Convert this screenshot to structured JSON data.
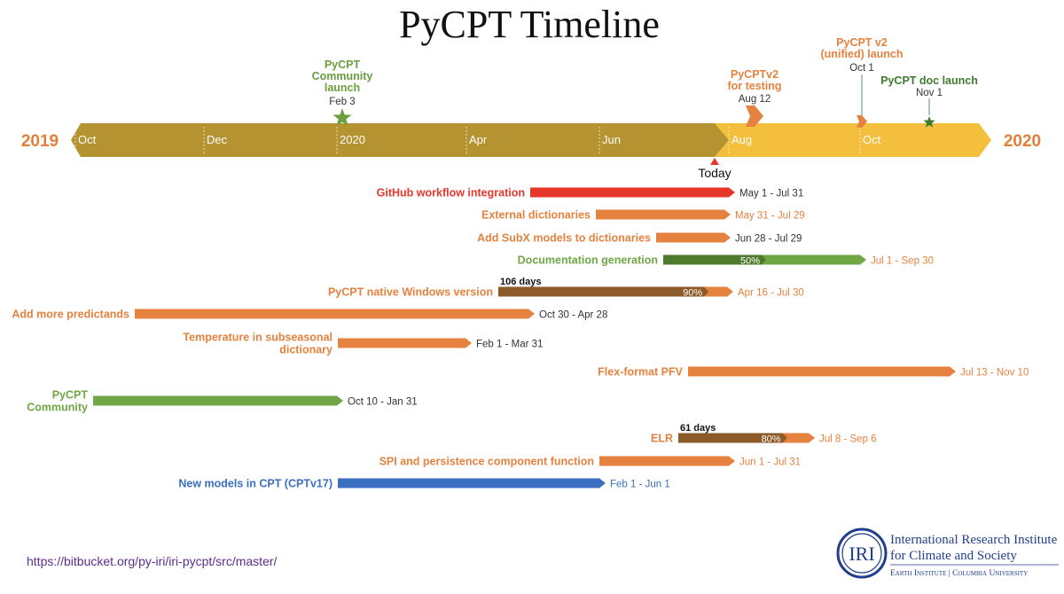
{
  "title": "PyCPT Timeline",
  "colors": {
    "axis_main": "#b59330",
    "axis_future": "#f3bf3c",
    "year": "#e27f3a",
    "red": "#e5372a",
    "orange": "#e5823f",
    "green": "#70a645",
    "dark_green": "#4d7a2c",
    "brown": "#8d5a29",
    "blue": "#3a6fc2",
    "date_text": "#333333",
    "milestone_green": "#6a9e3f",
    "milestone_dark_green": "#3f7a2f",
    "today": "#e5372a",
    "logo_blue": "#1f3f8c"
  },
  "timeline": {
    "start_year": "2019",
    "end_year": "2020",
    "months": [
      "Oct",
      "Dec",
      "2020",
      "Apr",
      "Jun",
      "Aug",
      "Oct"
    ],
    "today_label": "Today"
  },
  "milestones": [
    {
      "label_lines": [
        "PyCPT",
        "Community",
        "launch"
      ],
      "date": "Feb 3",
      "shape": "star",
      "color": "#6a9e3f"
    },
    {
      "label_lines": [
        "PyCPTv2",
        "for testing"
      ],
      "date": "Aug 12",
      "shape": "chevron",
      "color": "#e5823f"
    },
    {
      "label_lines": [
        "PyCPT v2",
        "(unified) launch"
      ],
      "date": "Oct 1",
      "shape": "chevron",
      "color": "#e5823f"
    },
    {
      "label_lines": [
        "PyCPT doc launch"
      ],
      "date": "Nov 1",
      "shape": "star",
      "color": "#3f7a2f"
    }
  ],
  "tasks": [
    {
      "label_lines": [
        "GitHub workflow integration"
      ],
      "dates": "May 1 - Jul 31",
      "color": "#e5372a",
      "date_color": "#333333"
    },
    {
      "label_lines": [
        "External dictionaries"
      ],
      "dates": "May 31 - Jul 29",
      "color": "#e5823f",
      "date_color": "#e5823f"
    },
    {
      "label_lines": [
        "Add SubX models to dictionaries"
      ],
      "dates": "Jun 28 - Jul 29",
      "color": "#e5823f",
      "date_color": "#333333"
    },
    {
      "label_lines": [
        "Documentation generation"
      ],
      "dates": "Jul 1 - Sep 30",
      "color": "#70a645",
      "date_color": "#e5823f",
      "progress": 0.5,
      "progress_label": "50%",
      "progress_color": "#4d7a2c"
    },
    {
      "label_lines": [
        "PyCPT native Windows version"
      ],
      "dates": "Apr 16 - Jul 30",
      "color": "#e5823f",
      "date_color": "#e5823f",
      "progress": 0.9,
      "progress_label": "90%",
      "progress_color": "#8d5a29",
      "duration_note": "106 days"
    },
    {
      "label_lines": [
        "Add more predictands"
      ],
      "dates": "Oct 30 - Apr 28",
      "color": "#e5823f",
      "date_color": "#333333"
    },
    {
      "label_lines": [
        "Temperature in subseasonal",
        "dictionary"
      ],
      "dates": "Feb 1 - Mar 31",
      "color": "#e5823f",
      "date_color": "#333333"
    },
    {
      "label_lines": [
        "Flex-format PFV"
      ],
      "dates": "Jul 13 - Nov 10",
      "color": "#e5823f",
      "date_color": "#e5823f"
    },
    {
      "label_lines": [
        "PyCPT",
        "Community"
      ],
      "dates": "Oct 10 - Jan 31",
      "color": "#70a645",
      "date_color": "#333333"
    },
    {
      "label_lines": [
        "ELR"
      ],
      "dates": "Jul 8 - Sep 6",
      "color": "#e5823f",
      "date_color": "#e5823f",
      "progress": 0.8,
      "progress_label": "80%",
      "progress_color": "#8d5a29",
      "duration_note": "61 days"
    },
    {
      "label_lines": [
        "SPI and persistence component function"
      ],
      "dates": "Jun 1 - Jul 31",
      "color": "#e5823f",
      "date_color": "#e5823f"
    },
    {
      "label_lines": [
        "New models in CPT (CPTv17)"
      ],
      "dates": "Feb 1 - Jun 1",
      "color": "#3a6fc2",
      "date_color": "#3a6fc2"
    }
  ],
  "footer": {
    "url": "https://bitbucket.org/py-iri/iri-pycpt/src/master/",
    "logo": {
      "monogram": "IRI",
      "line1": "International Research Institute",
      "line2": "for Climate and Society",
      "line3": "Earth Institute | Columbia University"
    }
  }
}
